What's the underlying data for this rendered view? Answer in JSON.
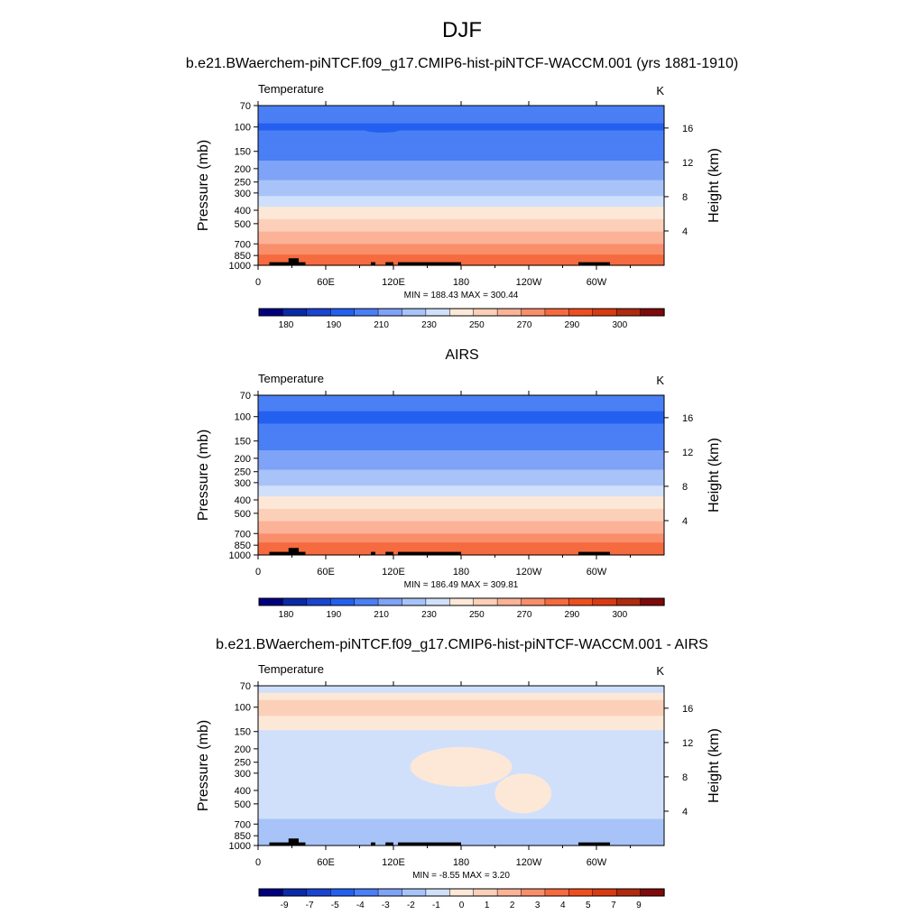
{
  "figure": {
    "main_title": "DJF"
  },
  "colors": {
    "temperature_levels": [
      "#00007f",
      "#0a2ba8",
      "#1a45d0",
      "#2460f0",
      "#4a7ff5",
      "#7ea3f7",
      "#a8c3f8",
      "#d0e0fb",
      "#fde8d8",
      "#fcd0b8",
      "#fbb297",
      "#f98e6b",
      "#f56a3e",
      "#ef4f1f",
      "#d93a12",
      "#b02a0e",
      "#7f0a0a"
    ],
    "difference_levels": [
      "#00007f",
      "#0a2ba8",
      "#1a45d0",
      "#2460f0",
      "#4a7ff5",
      "#7ea3f7",
      "#a8c3f8",
      "#d0e0fb",
      "#fde8d8",
      "#fcd0b8",
      "#fbb297",
      "#f98e6b",
      "#f56a3e",
      "#ef4f1f",
      "#d93a12",
      "#b02a0e",
      "#7f0a0a"
    ],
    "topography": "#000000"
  },
  "chart_data": [
    {
      "type": "heatmap",
      "title": "b.e21.BWaerchem-piNTCF.f09_g17.CMIP6-hist-piNTCF-WACCM.001 (yrs 1881-1910)",
      "variable": "Temperature",
      "units": "K",
      "ylabel": "Pressure (mb)",
      "ylabel_right": "Height (km)",
      "xticks": [
        "0",
        "60E",
        "120E",
        "180",
        "120W",
        "60W"
      ],
      "xlim": [
        0,
        360
      ],
      "yticks": [
        "70",
        "100",
        "150",
        "200",
        "250",
        "300",
        "400",
        "500",
        "700",
        "850",
        "1000"
      ],
      "ylim_mb": [
        70,
        1000
      ],
      "height_ticks": [
        "4",
        "8",
        "12",
        "16"
      ],
      "stats": "MIN = 188.43  MAX = 300.44",
      "colorbar_labels": [
        "180",
        "190",
        "210",
        "230",
        "250",
        "270",
        "290",
        "300"
      ],
      "levels_mb": [
        70,
        100,
        150,
        200,
        250,
        300,
        400,
        500,
        700,
        850,
        1000
      ],
      "profile_K": [
        206,
        199,
        206,
        214,
        221,
        228,
        243,
        253,
        270,
        281,
        287
      ],
      "cold_blobs": [
        {
          "lon": 110,
          "p": 102,
          "half_width_deg": 18,
          "cells": [
            3
          ]
        }
      ]
    },
    {
      "type": "heatmap",
      "title": "AIRS",
      "variable": "Temperature",
      "units": "K",
      "ylabel": "Pressure (mb)",
      "ylabel_right": "Height (km)",
      "xticks": [
        "0",
        "60E",
        "120E",
        "180",
        "120W",
        "60W"
      ],
      "xlim": [
        0,
        360
      ],
      "yticks": [
        "70",
        "100",
        "150",
        "200",
        "250",
        "300",
        "400",
        "500",
        "700",
        "850",
        "1000"
      ],
      "ylim_mb": [
        70,
        1000
      ],
      "height_ticks": [
        "4",
        "8",
        "12",
        "16"
      ],
      "stats": "MIN = 186.49  MAX = 309.81",
      "colorbar_labels": [
        "180",
        "190",
        "210",
        "230",
        "250",
        "270",
        "290",
        "300"
      ],
      "levels_mb": [
        70,
        100,
        150,
        200,
        250,
        300,
        400,
        500,
        700,
        850,
        1000
      ],
      "profile_K": [
        206,
        198,
        205,
        214,
        221,
        228,
        243,
        253,
        270,
        282,
        289
      ],
      "cold_blobs": [
        {
          "lon": 20,
          "p": 102,
          "half_width_deg": 12,
          "cells": [
            3
          ]
        },
        {
          "lon": 150,
          "p": 100,
          "half_width_deg": 60,
          "cells": [
            3
          ]
        },
        {
          "lon": 290,
          "p": 102,
          "half_width_deg": 30,
          "cells": [
            3
          ]
        }
      ]
    },
    {
      "type": "heatmap",
      "title": "b.e21.BWaerchem-piNTCF.f09_g17.CMIP6-hist-piNTCF-WACCM.001 - AIRS",
      "variable": "Temperature",
      "units": "K",
      "ylabel": "Pressure (mb)",
      "ylabel_right": "Height (km)",
      "xticks": [
        "0",
        "60E",
        "120E",
        "180",
        "120W",
        "60W"
      ],
      "xlim": [
        0,
        360
      ],
      "yticks": [
        "70",
        "100",
        "150",
        "200",
        "250",
        "300",
        "400",
        "500",
        "700",
        "850",
        "1000"
      ],
      "ylim_mb": [
        70,
        1000
      ],
      "height_ticks": [
        "4",
        "8",
        "12",
        "16"
      ],
      "stats": "MIN =  -8.55  MAX =   3.20",
      "colorbar_labels": [
        "-9",
        "-7",
        "-5",
        "-4",
        "-3",
        "-2",
        "-1",
        "0",
        "1",
        "2",
        "3",
        "4",
        "5",
        "7",
        "9"
      ],
      "background_K": -0.5,
      "features": [
        {
          "kind": "band",
          "p_top": 78,
          "p_bottom": 145,
          "value": 0.5
        },
        {
          "kind": "band",
          "p_top": 88,
          "p_bottom": 115,
          "value": 1.5
        },
        {
          "kind": "blob",
          "lon": 180,
          "p": 270,
          "half_width_deg": 45,
          "value": 0.5
        },
        {
          "kind": "blob",
          "lon": 235,
          "p": 420,
          "half_width_deg": 25,
          "value": 0.5
        },
        {
          "kind": "band",
          "p_top": 650,
          "p_bottom": 1000,
          "value": -1.5
        }
      ]
    }
  ],
  "topography": [
    {
      "lon_start": 10,
      "lon_end": 42,
      "p_top": 950
    },
    {
      "lon_start": 27,
      "lon_end": 36,
      "p_top": 890
    },
    {
      "lon_start": 100,
      "lon_end": 104,
      "p_top": 950
    },
    {
      "lon_start": 113,
      "lon_end": 120,
      "p_top": 950
    },
    {
      "lon_start": 124,
      "lon_end": 180,
      "p_top": 950
    },
    {
      "lon_start": 284,
      "lon_end": 312,
      "p_top": 950
    }
  ]
}
